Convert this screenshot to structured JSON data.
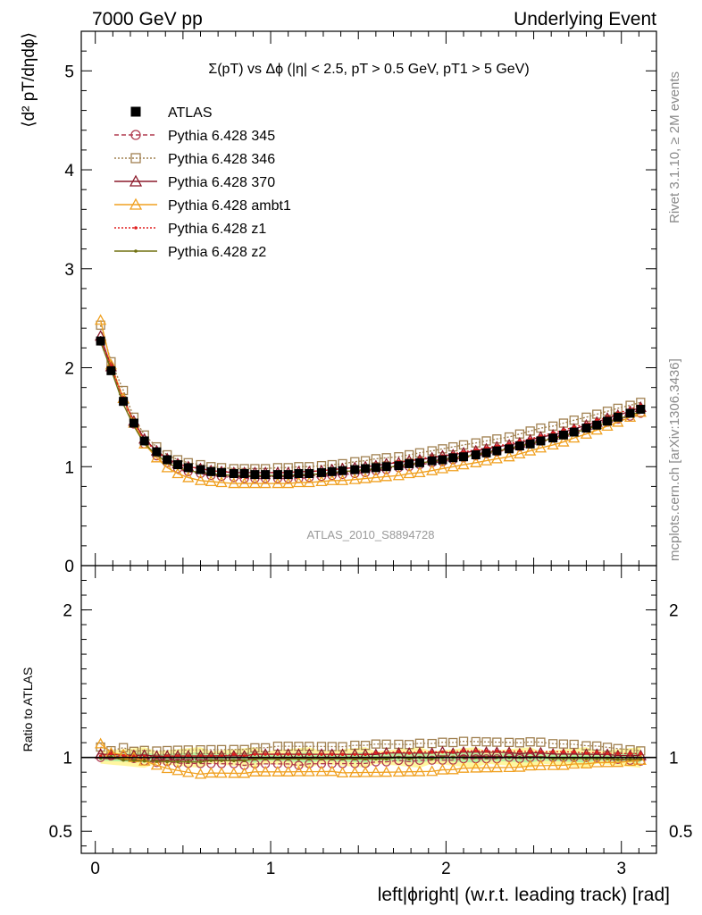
{
  "header": {
    "left": "7000 GeV pp",
    "right": "Underlying Event"
  },
  "side_labels": {
    "rivet": "Rivet 3.1.10, ≥ 2M events",
    "mcplots": "mcplots.cern.ch [arXiv:1306.3436]"
  },
  "chart_data": [
    {
      "type": "scatter",
      "title": "Σ(pT) vs Δϕ (|η| < 2.5, pT > 0.5 GeV, pT1 > 5 GeV)",
      "analysis_id": "ATLAS_2010_S8894728",
      "ylabel": "⟨d² pT/dηdϕ⟩",
      "xlabel": "",
      "xlim": [
        -0.08,
        3.2
      ],
      "ylim": [
        0,
        5.4
      ],
      "yticks": [
        "0",
        "1",
        "2",
        "3",
        "4",
        "5"
      ],
      "legend_position": "top-left",
      "x": [
        0.03,
        0.09,
        0.16,
        0.22,
        0.28,
        0.35,
        0.41,
        0.47,
        0.53,
        0.6,
        0.66,
        0.72,
        0.79,
        0.85,
        0.91,
        0.97,
        1.04,
        1.1,
        1.16,
        1.22,
        1.29,
        1.35,
        1.41,
        1.48,
        1.54,
        1.6,
        1.66,
        1.73,
        1.79,
        1.85,
        1.92,
        1.98,
        2.04,
        2.1,
        2.17,
        2.23,
        2.29,
        2.36,
        2.42,
        2.48,
        2.54,
        2.61,
        2.67,
        2.73,
        2.8,
        2.86,
        2.92,
        2.98,
        3.05,
        3.11
      ],
      "series": [
        {
          "name": "ATLAS",
          "color": "#000000",
          "marker": "square-filled",
          "values": [
            2.27,
            1.97,
            1.66,
            1.44,
            1.26,
            1.15,
            1.07,
            1.02,
            0.99,
            0.97,
            0.95,
            0.94,
            0.93,
            0.93,
            0.92,
            0.92,
            0.92,
            0.92,
            0.93,
            0.93,
            0.94,
            0.95,
            0.96,
            0.97,
            0.98,
            0.99,
            1.0,
            1.01,
            1.03,
            1.04,
            1.06,
            1.07,
            1.09,
            1.1,
            1.12,
            1.14,
            1.16,
            1.18,
            1.21,
            1.23,
            1.26,
            1.29,
            1.32,
            1.35,
            1.39,
            1.42,
            1.46,
            1.5,
            1.54,
            1.58
          ]
        },
        {
          "name": "Pythia 6.428 345",
          "color": "#b03a4e",
          "marker": "circle-open",
          "dash": "5,3",
          "values": [
            2.27,
            1.99,
            1.67,
            1.43,
            1.23,
            1.11,
            1.04,
            0.98,
            0.95,
            0.93,
            0.91,
            0.9,
            0.89,
            0.88,
            0.88,
            0.88,
            0.88,
            0.88,
            0.88,
            0.89,
            0.9,
            0.91,
            0.92,
            0.93,
            0.94,
            0.96,
            0.97,
            0.99,
            1.0,
            1.02,
            1.04,
            1.05,
            1.07,
            1.09,
            1.11,
            1.13,
            1.15,
            1.18,
            1.2,
            1.23,
            1.26,
            1.29,
            1.32,
            1.35,
            1.39,
            1.42,
            1.45,
            1.48,
            1.51,
            1.54
          ]
        },
        {
          "name": "Pythia 6.428 346",
          "color": "#a08050",
          "marker": "square-open",
          "dash": "2,2",
          "values": [
            2.43,
            2.06,
            1.77,
            1.5,
            1.32,
            1.2,
            1.12,
            1.07,
            1.04,
            1.02,
            1.0,
            0.99,
            0.98,
            0.98,
            0.98,
            0.98,
            0.99,
            0.99,
            1.0,
            1.0,
            1.01,
            1.02,
            1.03,
            1.05,
            1.06,
            1.08,
            1.09,
            1.1,
            1.12,
            1.14,
            1.16,
            1.18,
            1.2,
            1.22,
            1.24,
            1.26,
            1.28,
            1.3,
            1.33,
            1.36,
            1.39,
            1.41,
            1.44,
            1.47,
            1.5,
            1.53,
            1.56,
            1.59,
            1.62,
            1.65
          ]
        },
        {
          "name": "Pythia 6.428 370",
          "color": "#8b1a2b",
          "marker": "triangle-open",
          "dash": "",
          "values": [
            2.32,
            2.01,
            1.69,
            1.46,
            1.28,
            1.16,
            1.08,
            1.03,
            1.0,
            0.98,
            0.96,
            0.95,
            0.94,
            0.94,
            0.94,
            0.94,
            0.94,
            0.94,
            0.95,
            0.95,
            0.96,
            0.97,
            0.98,
            0.99,
            1.0,
            1.01,
            1.03,
            1.04,
            1.06,
            1.07,
            1.09,
            1.11,
            1.12,
            1.14,
            1.16,
            1.18,
            1.2,
            1.22,
            1.24,
            1.27,
            1.3,
            1.32,
            1.35,
            1.38,
            1.42,
            1.45,
            1.49,
            1.52,
            1.56,
            1.6
          ]
        },
        {
          "name": "Pythia 6.428 ambt1",
          "color": "#f0a020",
          "marker": "triangle-open",
          "dash": "",
          "values": [
            2.48,
            2.03,
            1.69,
            1.44,
            1.23,
            1.09,
            0.99,
            0.93,
            0.89,
            0.86,
            0.85,
            0.84,
            0.83,
            0.83,
            0.83,
            0.83,
            0.83,
            0.83,
            0.84,
            0.84,
            0.85,
            0.86,
            0.86,
            0.87,
            0.88,
            0.89,
            0.9,
            0.91,
            0.93,
            0.94,
            0.96,
            0.98,
            1.0,
            1.02,
            1.04,
            1.06,
            1.08,
            1.1,
            1.13,
            1.16,
            1.19,
            1.22,
            1.25,
            1.29,
            1.33,
            1.37,
            1.41,
            1.45,
            1.5,
            1.55
          ]
        },
        {
          "name": "Pythia 6.428 z1",
          "color": "#e02020",
          "marker": "dot",
          "dash": "2,2",
          "values": [
            2.29,
            2.02,
            1.68,
            1.45,
            1.27,
            1.15,
            1.08,
            1.03,
            1.0,
            0.98,
            0.96,
            0.95,
            0.95,
            0.94,
            0.94,
            0.94,
            0.94,
            0.94,
            0.95,
            0.95,
            0.96,
            0.97,
            0.98,
            0.99,
            1.0,
            1.02,
            1.03,
            1.05,
            1.06,
            1.08,
            1.1,
            1.11,
            1.13,
            1.15,
            1.17,
            1.19,
            1.21,
            1.23,
            1.26,
            1.28,
            1.31,
            1.34,
            1.37,
            1.4,
            1.43,
            1.47,
            1.5,
            1.54,
            1.58,
            1.62
          ]
        },
        {
          "name": "Pythia 6.428 z2",
          "color": "#707010",
          "marker": "dot",
          "dash": "",
          "values": [
            2.26,
            1.98,
            1.63,
            1.41,
            1.23,
            1.12,
            1.04,
            0.99,
            0.96,
            0.94,
            0.93,
            0.92,
            0.91,
            0.91,
            0.91,
            0.91,
            0.91,
            0.91,
            0.92,
            0.92,
            0.93,
            0.94,
            0.95,
            0.96,
            0.97,
            0.98,
            0.99,
            1.01,
            1.02,
            1.04,
            1.05,
            1.07,
            1.09,
            1.1,
            1.12,
            1.14,
            1.16,
            1.18,
            1.21,
            1.23,
            1.26,
            1.28,
            1.31,
            1.34,
            1.38,
            1.41,
            1.45,
            1.48,
            1.52,
            1.56
          ]
        }
      ]
    },
    {
      "type": "scatter",
      "title": "",
      "ylabel": "Ratio to ATLAS",
      "xlabel": "left|ϕright| (w.r.t. leading track) [rad]",
      "xlim": [
        -0.08,
        3.2
      ],
      "ylim": [
        0.35,
        2.3
      ],
      "yticks": [
        "0.5",
        "1",
        "2"
      ],
      "xticks": [
        "0",
        "1",
        "2",
        "3"
      ],
      "reference_line": 1,
      "uncertainty_bands": [
        "#fff6a0",
        "#b8f0a0"
      ]
    }
  ]
}
